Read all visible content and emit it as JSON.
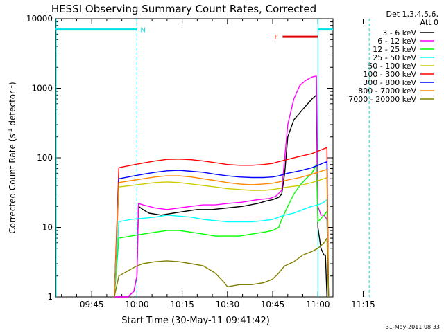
{
  "chart_data": {
    "type": "line",
    "title": "HESSI Observing Summary Count Rates, Corrected",
    "xlabel": "Start Time (30-May-11 09:41:42)",
    "ylabel_main": "Corrected Count Rate (s",
    "ylabel_sup1": "-1",
    "ylabel_mid": " detector",
    "ylabel_sup2": "-1",
    "ylabel_end": ")",
    "yscale": "log",
    "xlim_min": [
      -57,
      35
    ],
    "ylim": [
      1,
      10000
    ],
    "xticks": [
      {
        "t": -45,
        "label": "09:45"
      },
      {
        "t": -30,
        "label": "10:00"
      },
      {
        "t": -15,
        "label": "10:15"
      },
      {
        "t": 0,
        "label": "10:30"
      },
      {
        "t": 15,
        "label": "10:45"
      },
      {
        "t": 30,
        "label": "11:00"
      },
      {
        "t": 45,
        "label": "11:15"
      }
    ],
    "yticks": [
      {
        "v": 1,
        "label": "1"
      },
      {
        "v": 10,
        "label": "10"
      },
      {
        "v": 100,
        "label": "100"
      },
      {
        "v": 1000,
        "label": "1000"
      },
      {
        "v": 10000,
        "label": "10000"
      }
    ],
    "legend_header": [
      "Det 1,3,4,5,6,",
      "Att 0"
    ],
    "legend_position": "right",
    "series": [
      {
        "name": "3 - 6 keV",
        "color": "#000000",
        "points": [
          [
            -37.5,
            1
          ],
          [
            -33,
            1
          ],
          [
            -31,
            1.2
          ],
          [
            -30,
            2
          ],
          [
            -29.5,
            20
          ],
          [
            -28,
            18
          ],
          [
            -26,
            16
          ],
          [
            -22,
            15
          ],
          [
            -18,
            16
          ],
          [
            -14,
            17
          ],
          [
            -10,
            18
          ],
          [
            -5,
            18
          ],
          [
            0,
            19
          ],
          [
            5,
            20
          ],
          [
            10,
            22
          ],
          [
            13,
            24
          ],
          [
            15,
            25
          ],
          [
            16,
            26
          ],
          [
            17,
            27
          ],
          [
            18,
            30
          ],
          [
            19,
            60
          ],
          [
            20,
            200
          ],
          [
            22,
            350
          ],
          [
            25,
            500
          ],
          [
            28,
            700
          ],
          [
            29.5,
            800
          ],
          [
            30,
            10
          ],
          [
            31,
            5
          ],
          [
            32,
            4
          ],
          [
            32.5,
            4
          ],
          [
            33,
            1
          ]
        ]
      },
      {
        "name": "6 - 12 keV",
        "color": "#ff00ff",
        "points": [
          [
            -37.5,
            1
          ],
          [
            -33,
            1
          ],
          [
            -31,
            1.2
          ],
          [
            -30,
            2
          ],
          [
            -29.5,
            22
          ],
          [
            -28,
            21
          ],
          [
            -24,
            19
          ],
          [
            -20,
            18
          ],
          [
            -16,
            19
          ],
          [
            -12,
            20
          ],
          [
            -8,
            21
          ],
          [
            -4,
            21
          ],
          [
            0,
            22
          ],
          [
            5,
            23
          ],
          [
            10,
            25
          ],
          [
            14,
            26
          ],
          [
            16,
            28
          ],
          [
            18,
            34
          ],
          [
            19,
            100
          ],
          [
            20,
            300
          ],
          [
            22,
            700
          ],
          [
            24,
            1100
          ],
          [
            26,
            1300
          ],
          [
            28,
            1450
          ],
          [
            29.5,
            1500
          ],
          [
            30,
            20
          ],
          [
            31,
            15
          ],
          [
            32,
            15
          ],
          [
            33,
            13
          ],
          [
            33.5,
            1
          ]
        ]
      },
      {
        "name": "12 - 25 keV",
        "color": "#00ff00",
        "points": [
          [
            -37.5,
            1
          ],
          [
            -36,
            7
          ],
          [
            -32,
            7.5
          ],
          [
            -28,
            8
          ],
          [
            -24,
            8.5
          ],
          [
            -20,
            9
          ],
          [
            -16,
            9
          ],
          [
            -12,
            8.5
          ],
          [
            -8,
            8
          ],
          [
            -4,
            7.5
          ],
          [
            0,
            7.5
          ],
          [
            4,
            7.5
          ],
          [
            8,
            8
          ],
          [
            12,
            8.5
          ],
          [
            15,
            9
          ],
          [
            17,
            10
          ],
          [
            18,
            13
          ],
          [
            20,
            20
          ],
          [
            22,
            30
          ],
          [
            24,
            40
          ],
          [
            26,
            50
          ],
          [
            28,
            60
          ],
          [
            29.5,
            80
          ],
          [
            30,
            12
          ],
          [
            32,
            15
          ],
          [
            33,
            17
          ],
          [
            33.5,
            1
          ]
        ]
      },
      {
        "name": "25 - 50 keV",
        "color": "#00ffff",
        "points": [
          [
            -37.5,
            1
          ],
          [
            -36,
            12
          ],
          [
            -32,
            13
          ],
          [
            -28,
            13.5
          ],
          [
            -24,
            14
          ],
          [
            -20,
            15
          ],
          [
            -16,
            14.5
          ],
          [
            -12,
            14
          ],
          [
            -8,
            13
          ],
          [
            -4,
            12.5
          ],
          [
            0,
            12
          ],
          [
            4,
            12
          ],
          [
            8,
            12
          ],
          [
            12,
            12.5
          ],
          [
            15,
            13
          ],
          [
            17,
            14
          ],
          [
            19,
            15
          ],
          [
            22,
            16
          ],
          [
            25,
            18
          ],
          [
            28,
            20
          ],
          [
            30,
            21
          ],
          [
            32,
            23
          ],
          [
            33,
            25
          ],
          [
            33.5,
            1
          ]
        ]
      },
      {
        "name": "50 - 100 keV",
        "color": "#cccc00",
        "points": [
          [
            -37.5,
            1
          ],
          [
            -36,
            38
          ],
          [
            -32,
            40
          ],
          [
            -28,
            42
          ],
          [
            -24,
            44
          ],
          [
            -20,
            45
          ],
          [
            -16,
            44
          ],
          [
            -12,
            42
          ],
          [
            -8,
            40
          ],
          [
            -4,
            38
          ],
          [
            0,
            36
          ],
          [
            4,
            35
          ],
          [
            8,
            34
          ],
          [
            12,
            34
          ],
          [
            15,
            35
          ],
          [
            17,
            36
          ],
          [
            20,
            38
          ],
          [
            24,
            40
          ],
          [
            28,
            44
          ],
          [
            30,
            47
          ],
          [
            32,
            50
          ],
          [
            33,
            52
          ],
          [
            33.5,
            1
          ]
        ]
      },
      {
        "name": "100 - 300 keV",
        "color": "#ff0000",
        "points": [
          [
            -37.5,
            1
          ],
          [
            -36,
            72
          ],
          [
            -32,
            78
          ],
          [
            -28,
            84
          ],
          [
            -24,
            90
          ],
          [
            -20,
            95
          ],
          [
            -16,
            96
          ],
          [
            -12,
            94
          ],
          [
            -8,
            90
          ],
          [
            -4,
            85
          ],
          [
            0,
            80
          ],
          [
            4,
            78
          ],
          [
            8,
            78
          ],
          [
            12,
            80
          ],
          [
            15,
            83
          ],
          [
            17,
            88
          ],
          [
            20,
            95
          ],
          [
            24,
            105
          ],
          [
            28,
            115
          ],
          [
            30,
            125
          ],
          [
            32,
            135
          ],
          [
            33,
            140
          ],
          [
            33.5,
            1
          ]
        ]
      },
      {
        "name": "300 - 800 keV",
        "color": "#0000ff",
        "points": [
          [
            -37.5,
            1
          ],
          [
            -36,
            50
          ],
          [
            -32,
            54
          ],
          [
            -28,
            58
          ],
          [
            -24,
            62
          ],
          [
            -20,
            65
          ],
          [
            -16,
            66
          ],
          [
            -12,
            64
          ],
          [
            -8,
            62
          ],
          [
            -4,
            58
          ],
          [
            0,
            55
          ],
          [
            4,
            53
          ],
          [
            8,
            52
          ],
          [
            12,
            52
          ],
          [
            15,
            53
          ],
          [
            17,
            55
          ],
          [
            20,
            60
          ],
          [
            24,
            65
          ],
          [
            28,
            72
          ],
          [
            30,
            78
          ],
          [
            32,
            85
          ],
          [
            33,
            88
          ],
          [
            33.5,
            1
          ]
        ]
      },
      {
        "name": "800 - 7000 keV",
        "color": "#ff8800",
        "points": [
          [
            -37.5,
            1
          ],
          [
            -36,
            44
          ],
          [
            -32,
            47
          ],
          [
            -28,
            50
          ],
          [
            -24,
            53
          ],
          [
            -20,
            55
          ],
          [
            -16,
            55
          ],
          [
            -12,
            53
          ],
          [
            -8,
            50
          ],
          [
            -4,
            47
          ],
          [
            0,
            44
          ],
          [
            4,
            42
          ],
          [
            8,
            41
          ],
          [
            12,
            42
          ],
          [
            15,
            43
          ],
          [
            17,
            45
          ],
          [
            20,
            48
          ],
          [
            24,
            52
          ],
          [
            28,
            58
          ],
          [
            30,
            62
          ],
          [
            32,
            66
          ],
          [
            33,
            68
          ],
          [
            33.5,
            1
          ]
        ]
      },
      {
        "name": "7000 - 20000 keV",
        "color": "#808000",
        "points": [
          [
            -37.5,
            1
          ],
          [
            -36,
            2
          ],
          [
            -32,
            2.5
          ],
          [
            -30,
            2.8
          ],
          [
            -28,
            3
          ],
          [
            -24,
            3.2
          ],
          [
            -20,
            3.3
          ],
          [
            -16,
            3.2
          ],
          [
            -12,
            3
          ],
          [
            -8,
            2.8
          ],
          [
            -4,
            2.2
          ],
          [
            -1,
            1.6
          ],
          [
            0,
            1.4
          ],
          [
            4,
            1.5
          ],
          [
            8,
            1.5
          ],
          [
            12,
            1.6
          ],
          [
            15,
            1.8
          ],
          [
            17,
            2.2
          ],
          [
            19,
            2.8
          ],
          [
            22,
            3.2
          ],
          [
            25,
            4
          ],
          [
            28,
            4.5
          ],
          [
            30,
            5
          ],
          [
            32,
            6
          ],
          [
            33,
            7
          ],
          [
            33.5,
            1
          ]
        ]
      }
    ],
    "annotations": {
      "night_label": "N",
      "flare_label": "F",
      "night_bars": [
        [
          -57,
          -30
        ],
        [
          30,
          47
        ]
      ],
      "night_vlines": [
        -30,
        47
      ],
      "flare_bar": [
        18.3,
        30
      ],
      "flare_bar_level": 5500,
      "flare_vline": 30
    },
    "footer_date": "31-May-2011 08:33"
  }
}
